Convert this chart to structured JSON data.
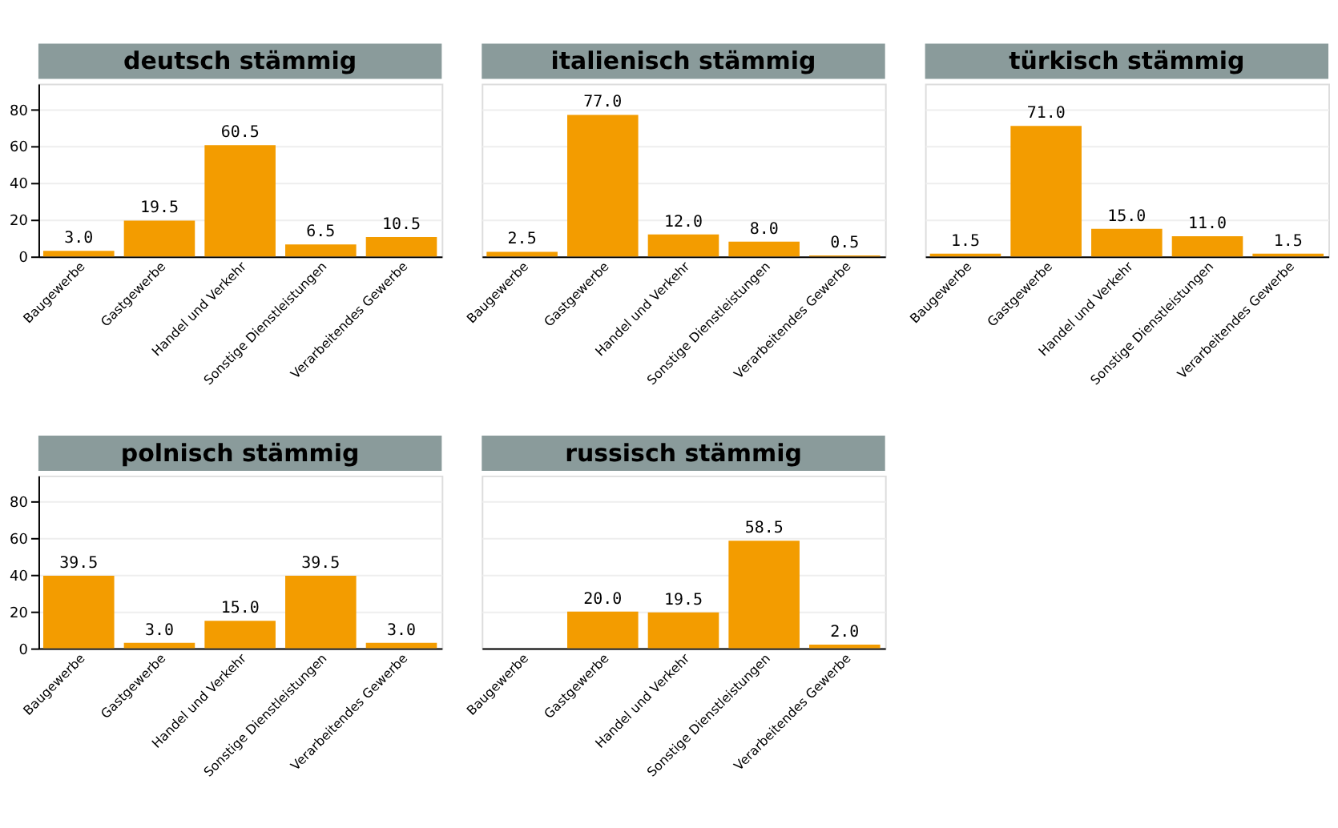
{
  "chart_data": [
    {
      "type": "bar",
      "title": "deutsch stämmig",
      "categories": [
        "Baugewerbe",
        "Gastgewerbe",
        "Handel und Verkehr",
        "Sonstige Dienstleistungen",
        "Verarbeitendes Gewerbe"
      ],
      "values": [
        3.0,
        19.5,
        60.5,
        6.5,
        10.5
      ],
      "value_labels": [
        "3.0",
        "19.5",
        "60.5",
        "6.5",
        "10.5"
      ],
      "color": "#f39c00",
      "ylim": [
        0,
        94
      ],
      "yticks": [
        0,
        20,
        40,
        60,
        80
      ],
      "grid": "y"
    },
    {
      "type": "bar",
      "title": "italienisch stämmig",
      "categories": [
        "Baugewerbe",
        "Gastgewerbe",
        "Handel und Verkehr",
        "Sonstige Dienstleistungen",
        "Verarbeitendes Gewerbe"
      ],
      "values": [
        2.5,
        77.0,
        12.0,
        8.0,
        0.5
      ],
      "value_labels": [
        "2.5",
        "77.0",
        "12.0",
        "8.0",
        "0.5"
      ],
      "color": "#f39c00",
      "ylim": [
        0,
        94
      ],
      "yticks": [
        0,
        20,
        40,
        60,
        80
      ],
      "grid": "y",
      "tick_labels": "x"
    },
    {
      "type": "bar",
      "title": "türkisch stämmig",
      "categories": [
        "Baugewerbe",
        "Gastgewerbe",
        "Handel und Verkehr",
        "Sonstige Dienstleistungen",
        "Verarbeitendes Gewerbe"
      ],
      "values": [
        1.5,
        71.0,
        15.0,
        11.0,
        1.5
      ],
      "value_labels": [
        "1.5",
        "71.0",
        "15.0",
        "11.0",
        "1.5"
      ],
      "color": "#f39c00",
      "ylim": [
        0,
        94
      ],
      "yticks": [
        0,
        20,
        40,
        60,
        80
      ],
      "grid": "y",
      "tick_labels": "x"
    },
    {
      "type": "bar",
      "title": "polnisch stämmig",
      "categories": [
        "Baugewerbe",
        "Gastgewerbe",
        "Handel und Verkehr",
        "Sonstige Dienstleistungen",
        "Verarbeitendes Gewerbe"
      ],
      "values": [
        39.5,
        3.0,
        15.0,
        39.5,
        3.0
      ],
      "value_labels": [
        "39.5",
        "3.0",
        "15.0",
        "39.5",
        "3.0"
      ],
      "color": "#f39c00",
      "ylim": [
        0,
        94
      ],
      "yticks": [
        0,
        20,
        40,
        60,
        80
      ],
      "grid": "y"
    },
    {
      "type": "bar",
      "title": "russisch stämmig",
      "categories": [
        "Baugewerbe",
        "Gastgewerbe",
        "Handel und Verkehr",
        "Sonstige Dienstleistungen",
        "Verarbeitendes Gewerbe"
      ],
      "values": [
        null,
        20.0,
        19.5,
        58.5,
        2.0
      ],
      "value_labels": [
        null,
        "20.0",
        "19.5",
        "58.5",
        "2.0"
      ],
      "color": "#f39c00",
      "ylim": [
        0,
        94
      ],
      "yticks": [
        0,
        20,
        40,
        60,
        80
      ],
      "grid": "y",
      "tick_labels": "x"
    }
  ]
}
